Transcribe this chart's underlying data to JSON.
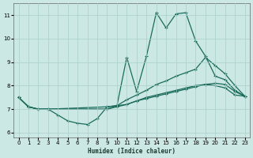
{
  "xlabel": "Humidex (Indice chaleur)",
  "xlim": [
    -0.5,
    23.5
  ],
  "ylim": [
    5.8,
    11.5
  ],
  "xticks": [
    0,
    1,
    2,
    3,
    4,
    5,
    6,
    7,
    8,
    9,
    10,
    11,
    12,
    13,
    14,
    15,
    16,
    17,
    18,
    19,
    20,
    21,
    22,
    23
  ],
  "yticks": [
    6,
    7,
    8,
    9,
    10,
    11
  ],
  "bg_color": "#cce8e4",
  "line_color": "#1a6b5a",
  "grid_color": "#aacfca",
  "curve_spike_x": [
    0,
    1,
    2,
    3,
    9,
    10,
    11,
    12,
    13,
    14,
    15,
    16,
    17,
    18,
    19,
    20,
    21,
    22,
    23
  ],
  "curve_spike_y": [
    7.5,
    7.1,
    7.0,
    7.0,
    7.1,
    7.15,
    9.2,
    7.75,
    9.25,
    11.1,
    10.45,
    11.05,
    11.1,
    9.9,
    9.25,
    8.4,
    8.25,
    7.8,
    7.55
  ],
  "curve_upper_x": [
    0,
    1,
    2,
    3,
    9,
    10,
    11,
    12,
    13,
    14,
    15,
    16,
    17,
    18,
    19,
    20,
    21,
    22,
    23
  ],
  "curve_upper_y": [
    7.5,
    7.1,
    7.0,
    7.0,
    7.0,
    7.15,
    7.4,
    7.6,
    7.8,
    8.05,
    8.2,
    8.4,
    8.55,
    8.7,
    9.2,
    8.85,
    8.5,
    8.0,
    7.55
  ],
  "curve_mid_x": [
    0,
    1,
    2,
    3,
    9,
    10,
    11,
    12,
    13,
    14,
    15,
    16,
    17,
    18,
    19,
    20,
    21,
    22,
    23
  ],
  "curve_mid_y": [
    7.5,
    7.1,
    7.0,
    7.0,
    7.0,
    7.1,
    7.2,
    7.35,
    7.5,
    7.6,
    7.7,
    7.8,
    7.9,
    8.0,
    8.05,
    8.0,
    7.9,
    7.6,
    7.55
  ],
  "curve_dip_x": [
    0,
    1,
    2,
    3,
    4,
    5,
    6,
    7,
    8,
    9,
    10,
    11,
    12,
    13,
    14,
    15,
    16,
    17,
    18,
    19,
    20,
    21,
    22,
    23
  ],
  "curve_dip_y": [
    7.5,
    7.1,
    7.0,
    7.0,
    6.75,
    6.5,
    6.4,
    6.35,
    6.6,
    7.1,
    7.15,
    7.2,
    7.35,
    7.45,
    7.55,
    7.65,
    7.75,
    7.85,
    7.95,
    8.05,
    8.1,
    8.05,
    7.75,
    7.55
  ]
}
